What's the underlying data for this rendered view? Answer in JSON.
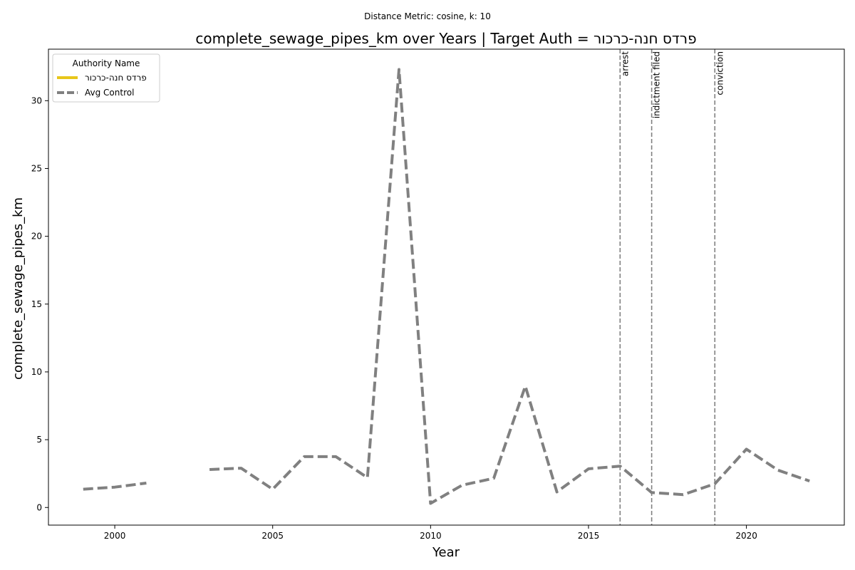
{
  "chart_data": {
    "type": "line",
    "suptitle": "Distance Metric: cosine, k: 10",
    "title": "complete_sewage_pipes_km over Years | Target Auth = פרדס חנה-כרכור",
    "xlabel": "Year",
    "ylabel": "complete_sewage_pipes_km",
    "xlim": [
      1997.9,
      2023.1
    ],
    "ylim": [
      -1.3,
      33.8
    ],
    "xticks": [
      2000,
      2005,
      2010,
      2015,
      2020
    ],
    "yticks": [
      0,
      5,
      10,
      15,
      20,
      25,
      30
    ],
    "grid": false,
    "legend": {
      "title": "Authority Name",
      "placement": "top-left"
    },
    "series": [
      {
        "name": "פרדס חנה-כרכור",
        "color": "#e8c61a",
        "style": "solid",
        "x": [],
        "y": []
      },
      {
        "name": "Avg Control",
        "color": "#808080",
        "style": "dashed",
        "x": [
          1999,
          2000,
          2001,
          2002,
          2003,
          2004,
          2005,
          2006,
          2007,
          2008,
          2009,
          2010,
          2011,
          2012,
          2013,
          2014,
          2015,
          2016,
          2017,
          2018,
          2019,
          2020,
          2021,
          2022
        ],
        "y": [
          1.35,
          1.5,
          1.8,
          null,
          2.8,
          2.9,
          1.35,
          3.75,
          3.75,
          2.2,
          32.3,
          0.3,
          1.65,
          2.15,
          8.95,
          1.15,
          2.85,
          3.05,
          1.1,
          0.95,
          1.75,
          4.3,
          2.75,
          1.95
        ]
      }
    ],
    "events": [
      {
        "x": 2016,
        "label": "arrest"
      },
      {
        "x": 2017,
        "label": "indictment filed"
      },
      {
        "x": 2019,
        "label": "conviction"
      }
    ]
  }
}
